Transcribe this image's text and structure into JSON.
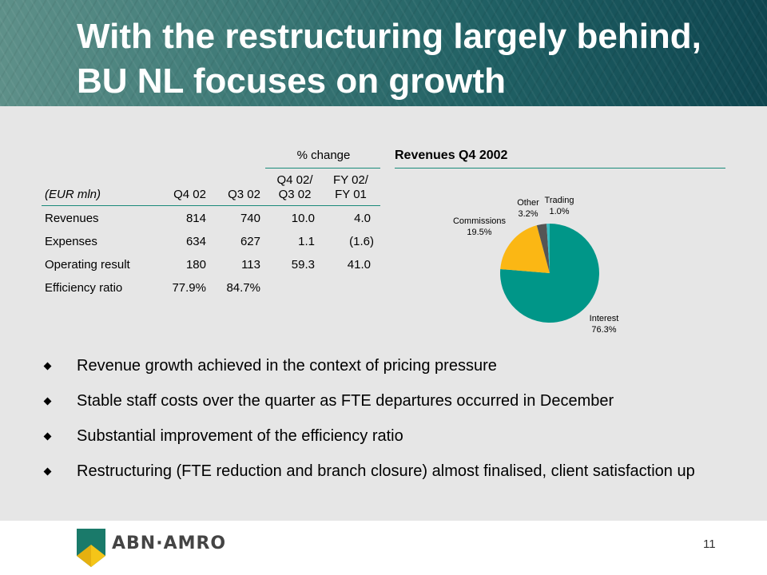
{
  "title": "With the restructuring largely behind, BU NL focuses on growth",
  "table": {
    "group_header": "% change",
    "unit_label": "(EUR mln)",
    "columns": [
      "Q4 02",
      "Q3 02",
      "Q4 02/\nQ3 02",
      "FY 02/\nFY 01"
    ],
    "col3_line1": "Q4 02/",
    "col3_line2": "Q3 02",
    "col4_line1": "FY 02/",
    "col4_line2": "FY 01",
    "rows": [
      {
        "label": "Revenues",
        "q4": "814",
        "q3": "740",
        "qoq": "10.0",
        "yoy": "4.0"
      },
      {
        "label": "Expenses",
        "q4": "634",
        "q3": "627",
        "qoq": "1.1",
        "yoy": "(1.6)"
      },
      {
        "label": "Operating result",
        "q4": "180",
        "q3": "113",
        "qoq": "59.3",
        "yoy": "41.0"
      },
      {
        "label": "Efficiency ratio",
        "q4": "77.9%",
        "q3": "84.7%",
        "qoq": "",
        "yoy": ""
      }
    ]
  },
  "chart_data": {
    "type": "pie",
    "title": "Revenues Q4 2002",
    "slices": [
      {
        "label": "Interest",
        "value": 76.3,
        "display": "76.3%",
        "color": "#009688"
      },
      {
        "label": "Commissions",
        "value": 19.5,
        "display": "19.5%",
        "color": "#fbb714"
      },
      {
        "label": "Other",
        "value": 3.2,
        "display": "3.2%",
        "color": "#555555"
      },
      {
        "label": "Trading",
        "value": 1.0,
        "display": "1.0%",
        "color": "#38bfc4"
      }
    ]
  },
  "bullets": [
    "Revenue growth achieved in the context of pricing pressure",
    "Stable staff costs over the quarter as FTE departures occurred in December",
    "Substantial improvement of the efficiency ratio",
    "Restructuring (FTE reduction and branch closure) almost finalised, client satisfaction up"
  ],
  "footer": {
    "brand": "ABN·AMRO",
    "page_number": "11"
  },
  "colors": {
    "accent": "#1a8a7a",
    "logo_green": "#1a7a6a",
    "logo_yellow": "#f5c518"
  }
}
